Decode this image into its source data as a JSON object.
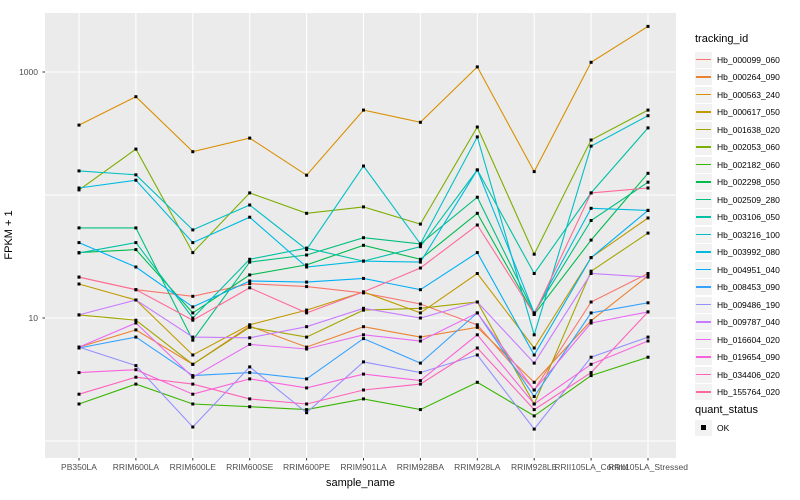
{
  "chart_data": {
    "type": "line",
    "title": "",
    "xlabel": "sample_name",
    "ylabel": "FPKM + 1",
    "y_scale": "log10",
    "ylim": [
      0.73,
      3050
    ],
    "y_tick_labels": [
      {
        "value": 1000,
        "label": "1000"
      },
      {
        "value": 10,
        "label": "10"
      }
    ],
    "y_gridline_values": [
      1,
      10,
      100,
      1000
    ],
    "grid": "major-only",
    "point_shape": "filled-square",
    "point_color": "#000000",
    "panel_bg_color": "#ebebeb",
    "gridline_color": "#ffffff",
    "tick_text_color": "#4d4d4d",
    "categories": [
      "PB350LA",
      "RRIM600LA",
      "RRIM600LE",
      "RRIM600SE",
      "RRIM600PE",
      "RRIM901LA",
      "RRIM928BA",
      "RRIM928LA",
      "RRIM928LE",
      "RRII105LA_Control",
      "RRII105LA_Stressed"
    ],
    "series": [
      {
        "name": "Hb_000099_060",
        "color": "#F8766D",
        "values": [
          21.5,
          17,
          15,
          19,
          18,
          16,
          13,
          8.8,
          2.6,
          13.5,
          23
        ]
      },
      {
        "name": "Hb_000264_090",
        "color": "#EA8331",
        "values": [
          5.8,
          8.0,
          4.2,
          8.6,
          5.8,
          8.5,
          7.0,
          8.4,
          3.0,
          9.5,
          22
        ]
      },
      {
        "name": "Hb_000563_240",
        "color": "#D89000",
        "values": [
          370,
          630,
          225,
          290,
          145,
          490,
          390,
          1100,
          155,
          1200,
          2350
        ]
      },
      {
        "name": "Hb_000617_050",
        "color": "#C09B00",
        "values": [
          18.9,
          14,
          5.0,
          8.8,
          11.6,
          16.3,
          11,
          23,
          5.7,
          31,
          65
        ]
      },
      {
        "name": "Hb_001638_020",
        "color": "#A3A500",
        "values": [
          10.6,
          9.6,
          4.2,
          8.4,
          7.0,
          11.6,
          12,
          13.5,
          2.0,
          24,
          49
        ]
      },
      {
        "name": "Hb_002053_060",
        "color": "#7CAE00",
        "values": [
          110,
          236,
          34,
          104,
          71,
          80,
          58,
          357,
          33,
          280,
          490
        ]
      },
      {
        "name": "Hb_002182_060",
        "color": "#39B600",
        "values": [
          2.0,
          2.9,
          2.0,
          1.9,
          1.8,
          2.2,
          1.8,
          3.0,
          1.6,
          3.4,
          4.8
        ]
      },
      {
        "name": "Hb_002298_050",
        "color": "#00BB4E",
        "values": [
          34,
          36,
          11,
          22.4,
          27,
          39,
          30,
          71,
          10.7,
          43,
          150
        ]
      },
      {
        "name": "Hb_002509_280",
        "color": "#00BF7D",
        "values": [
          54,
          54,
          6.6,
          28.5,
          32.5,
          45,
          40,
          96,
          11,
          62,
          127
        ]
      },
      {
        "name": "Hb_003106_050",
        "color": "#00C1A3",
        "values": [
          33.8,
          41,
          10,
          30,
          37,
          29,
          38,
          160,
          23,
          104,
          351
        ]
      },
      {
        "name": "Hb_003216_100",
        "color": "#00BFC4",
        "values": [
          157,
          146,
          52,
          83,
          36,
          172,
          40,
          297,
          7.3,
          250,
          441
        ]
      },
      {
        "name": "Hb_003992_080",
        "color": "#00BAE0",
        "values": [
          114,
          132,
          41,
          66,
          26,
          29,
          28.5,
          160,
          11,
          78,
          75
        ]
      },
      {
        "name": "Hb_004951_040",
        "color": "#00B0F6",
        "values": [
          41,
          26,
          12.3,
          20,
          19.6,
          21,
          17,
          34,
          5.0,
          31,
          75
        ]
      },
      {
        "name": "Hb_008453_090",
        "color": "#35A2FF",
        "values": [
          5.7,
          7.0,
          3.4,
          3.6,
          3.2,
          6.8,
          4.3,
          11,
          2.3,
          11,
          13.3
        ]
      },
      {
        "name": "Hb_009486_190",
        "color": "#9590FF",
        "values": [
          5.8,
          4.1,
          1.3,
          4.0,
          1.7,
          4.4,
          3.6,
          5.0,
          1.25,
          4.8,
          7.0
        ]
      },
      {
        "name": "Hb_009787_040",
        "color": "#C77CFF",
        "values": [
          10.6,
          14,
          7.0,
          6.9,
          8.5,
          12,
          10,
          13.5,
          4.3,
          23,
          21.5
        ]
      },
      {
        "name": "Hb_016604_020",
        "color": "#E76BF3",
        "values": [
          5.8,
          9.1,
          3.3,
          6.1,
          5.6,
          7.3,
          6.5,
          11,
          2.6,
          9.1,
          11.2
        ]
      },
      {
        "name": "Hb_019654_090",
        "color": "#FA62DB",
        "values": [
          3.6,
          3.8,
          2.4,
          3.2,
          2.7,
          3.5,
          3.1,
          7.3,
          2.0,
          4.2,
          6.5
        ]
      },
      {
        "name": "Hb_034406_020",
        "color": "#FF62BC",
        "values": [
          2.4,
          3.3,
          2.9,
          2.2,
          2.0,
          2.6,
          2.9,
          5.7,
          1.8,
          3.6,
          11.2
        ]
      },
      {
        "name": "Hb_155764_020",
        "color": "#FF6A98",
        "values": [
          21.5,
          17,
          9.6,
          17.6,
          11,
          16.3,
          25.5,
          57,
          10.7,
          104,
          114
        ]
      }
    ],
    "legend": {
      "title": "tracking_id",
      "position": "right"
    },
    "legend2": {
      "title": "quant_status",
      "items": [
        {
          "label": "OK"
        }
      ]
    }
  }
}
